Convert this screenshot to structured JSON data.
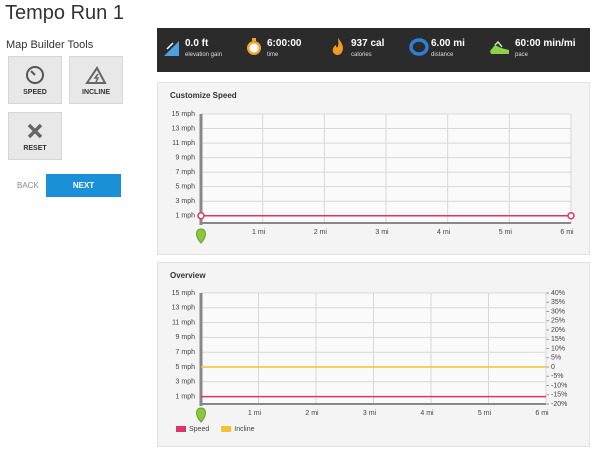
{
  "header": {
    "title": "Tempo Run 1",
    "subtitle": "Map Builder Tools"
  },
  "tools": {
    "buttons": [
      "SPEED",
      "INCLINE",
      "RESET"
    ],
    "back": "BACK",
    "next": "NEXT"
  },
  "stats": [
    {
      "value": "0.0 ft",
      "label": "elevation gain"
    },
    {
      "value": "6:00:00",
      "label": "time"
    },
    {
      "value": "937 cal",
      "label": "calories"
    },
    {
      "value": "6.00 mi",
      "label": "distance"
    },
    {
      "value": "60:00 min/mi",
      "label": "pace"
    }
  ],
  "chart_data": [
    {
      "type": "line",
      "title": "Customize Speed",
      "x": [
        0,
        6
      ],
      "values": [
        1,
        1
      ],
      "color": "#e0306e",
      "markers": true,
      "xlim": [
        0,
        6
      ],
      "xticks": [
        {
          "value": 1,
          "label": "1 mi"
        },
        {
          "value": 2,
          "label": "2 mi"
        },
        {
          "value": 3,
          "label": "3 mi"
        },
        {
          "value": 4,
          "label": "4 mi"
        },
        {
          "value": 5,
          "label": "5 mi"
        },
        {
          "value": 6,
          "label": "6 mi"
        }
      ],
      "ylim": [
        0,
        15
      ],
      "yticks": [
        {
          "value": 1,
          "label": "1 mph"
        },
        {
          "value": 3,
          "label": "3 mph"
        },
        {
          "value": 5,
          "label": "5 mph"
        },
        {
          "value": 7,
          "label": "7 mph"
        },
        {
          "value": 9,
          "label": "9 mph"
        },
        {
          "value": 11,
          "label": "11 mph"
        },
        {
          "value": 13,
          "label": "13 mph"
        },
        {
          "value": 15,
          "label": "15 mph"
        }
      ],
      "grid": true
    },
    {
      "type": "line",
      "title": "Overview",
      "x": [
        0,
        6
      ],
      "series": [
        {
          "name": "Speed",
          "color": "#e0306e",
          "values": [
            1,
            1
          ]
        },
        {
          "name": "Incline",
          "color": "#f2c230",
          "values": [
            0,
            0
          ],
          "axis": "y2"
        }
      ],
      "xlim": [
        0,
        6
      ],
      "xticks": [
        {
          "value": 1,
          "label": "1 mi"
        },
        {
          "value": 2,
          "label": "2 mi"
        },
        {
          "value": 3,
          "label": "3 mi"
        },
        {
          "value": 4,
          "label": "4 mi"
        },
        {
          "value": 5,
          "label": "5 mi"
        },
        {
          "value": 6,
          "label": "6 mi"
        }
      ],
      "ylim": [
        0,
        15
      ],
      "yticks": [
        {
          "value": 1,
          "label": "1 mph"
        },
        {
          "value": 3,
          "label": "3 mph"
        },
        {
          "value": 5,
          "label": "5 mph"
        },
        {
          "value": 7,
          "label": "7 mph"
        },
        {
          "value": 9,
          "label": "9 mph"
        },
        {
          "value": 11,
          "label": "11 mph"
        },
        {
          "value": 13,
          "label": "13 mph"
        },
        {
          "value": 15,
          "label": "15 mph"
        }
      ],
      "y2lim": [
        -20,
        40
      ],
      "y2ticks": [
        {
          "value": 40,
          "label": "40%"
        },
        {
          "value": 35,
          "label": "35%"
        },
        {
          "value": 30,
          "label": "30%"
        },
        {
          "value": 25,
          "label": "25%"
        },
        {
          "value": 20,
          "label": "20%"
        },
        {
          "value": 15,
          "label": "15%"
        },
        {
          "value": 10,
          "label": "10%"
        },
        {
          "value": 5,
          "label": "5%"
        },
        0,
        {
          "value": -5,
          "label": "-5%"
        },
        {
          "value": -10,
          "label": "-10%"
        },
        {
          "value": -15,
          "label": "-15%"
        },
        {
          "value": -20,
          "label": "-20%"
        }
      ],
      "grid": true,
      "legend": "bottom-left"
    }
  ]
}
